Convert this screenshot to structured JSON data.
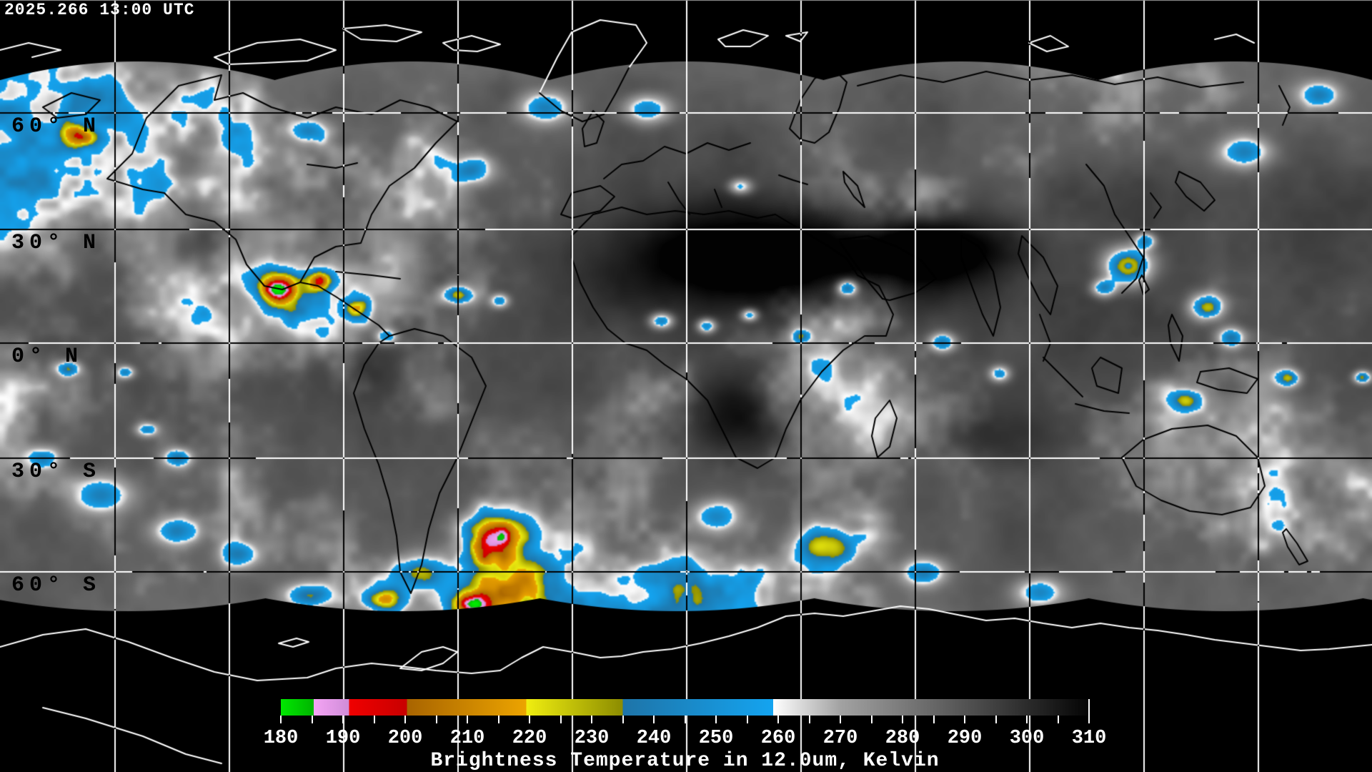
{
  "header": {
    "timestamp": "2025.266 13:00 UTC"
  },
  "map": {
    "lat_labels": [
      "60° N",
      "30° N",
      "0° N",
      "30° S",
      "60° S"
    ]
  },
  "colorbar": {
    "caption": "Brightness Temperature in 12.0um, Kelvin",
    "min": 180,
    "max": 310,
    "minor_tick_step": 5,
    "tick_labels": [
      "180",
      "190",
      "200",
      "210",
      "220",
      "230",
      "240",
      "250",
      "260",
      "270",
      "280",
      "290",
      "300",
      "310"
    ],
    "segments": [
      {
        "t0": 180.0,
        "t1": 185.3,
        "c0": "#00e800",
        "c1": "#00b400"
      },
      {
        "t0": 185.3,
        "t1": 191.0,
        "c0": "#f4a4f4",
        "c1": "#cf8cd8"
      },
      {
        "t0": 191.0,
        "t1": 200.3,
        "c0": "#f00000",
        "c1": "#c80000"
      },
      {
        "t0": 200.3,
        "t1": 219.5,
        "c0": "#a86400",
        "c1": "#eca400"
      },
      {
        "t0": 219.5,
        "t1": 235.0,
        "c0": "#f0ee10",
        "c1": "#8c8c00"
      },
      {
        "t0": 235.0,
        "t1": 259.2,
        "c0": "#1e74a8",
        "c1": "#14a4f0"
      },
      {
        "t0": 259.2,
        "t1": 270.0,
        "c0": "#ffffff",
        "c1": "#a2a2a2"
      },
      {
        "t0": 270.0,
        "t1": 310.0,
        "c0": "#a2a2a2",
        "c1": "#040404"
      }
    ]
  }
}
